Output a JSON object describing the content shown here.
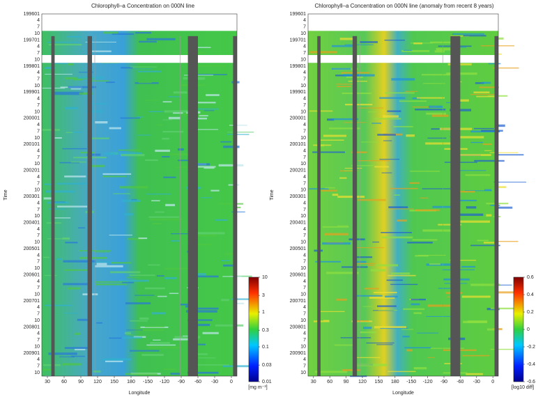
{
  "chart_data": [
    {
      "type": "heatmap",
      "title": "Chlorophyll–a Concentration on 000N line",
      "xlabel": "Longitude",
      "ylabel": "Time",
      "xlim": [
        20,
        370
      ],
      "xticks": [
        30,
        60,
        90,
        120,
        150,
        180,
        {
          "value": 210,
          "label": "-150"
        },
        {
          "value": 240,
          "label": "-120"
        },
        {
          "value": 270,
          "label": "-90"
        },
        {
          "value": 300,
          "label": "-60"
        },
        {
          "value": 330,
          "label": "-30"
        },
        {
          "value": 360,
          "label": "0"
        }
      ],
      "time_labels": [
        "199601",
        "4",
        "7",
        "10",
        "199701",
        "4",
        "7",
        "10",
        "199801",
        "4",
        "7",
        "10",
        "199901",
        "4",
        "7",
        "10",
        "200001",
        "4",
        "7",
        "10",
        "200101",
        "4",
        "7",
        "10",
        "200201",
        "4",
        "7",
        "10",
        "200301",
        "4",
        "7",
        "10",
        "200401",
        "4",
        "7",
        "10",
        "200501",
        "4",
        "7",
        "10",
        "200601",
        "4",
        "7",
        "10",
        "200701",
        "4",
        "7",
        "10",
        "200801",
        "4",
        "7",
        "10",
        "200901",
        "4",
        "7",
        "10"
      ],
      "colorbar": {
        "scale": "log",
        "clim": [
          0.01,
          10
        ],
        "ticks": [
          10,
          3,
          1,
          0.3,
          0.1,
          0.03,
          0.01
        ],
        "label": "[mg m⁻³]"
      }
    },
    {
      "type": "heatmap",
      "title": "Chlorophyll–a Concentration on 000N line (anomaly from recent 8 years)",
      "xlabel": "Longitude",
      "ylabel": "Time",
      "xlim": [
        20,
        370
      ],
      "xticks": [
        30,
        60,
        90,
        120,
        150,
        180,
        {
          "value": 210,
          "label": "-150"
        },
        {
          "value": 240,
          "label": "-120"
        },
        {
          "value": 270,
          "label": "-90"
        },
        {
          "value": 300,
          "label": "-60"
        },
        {
          "value": 330,
          "label": "-30"
        },
        {
          "value": 360,
          "label": "0"
        }
      ],
      "time_labels": [
        "199601",
        "4",
        "7",
        "10",
        "199701",
        "4",
        "7",
        "10",
        "199801",
        "4",
        "7",
        "10",
        "199901",
        "4",
        "7",
        "10",
        "200001",
        "4",
        "7",
        "10",
        "200101",
        "4",
        "7",
        "10",
        "200201",
        "4",
        "7",
        "10",
        "200301",
        "4",
        "7",
        "10",
        "200401",
        "4",
        "7",
        "10",
        "200501",
        "4",
        "7",
        "10",
        "200601",
        "4",
        "7",
        "10",
        "200701",
        "4",
        "7",
        "10",
        "200801",
        "4",
        "7",
        "10",
        "200901",
        "4",
        "7",
        "10"
      ],
      "colorbar": {
        "scale": "linear",
        "clim": [
          -0.6,
          0.6
        ],
        "ticks": [
          0.6,
          0.4,
          0.2,
          0,
          -0.2,
          -0.4,
          -0.6
        ],
        "label": "[log10 diff]"
      }
    }
  ]
}
